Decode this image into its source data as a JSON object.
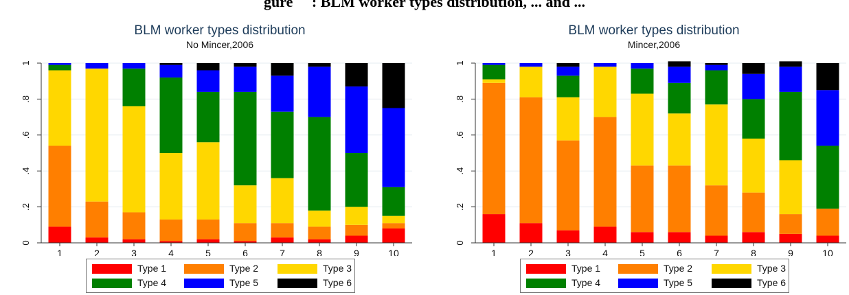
{
  "heading": {
    "text": "gure     : BLM worker types distribution, ... and ..."
  },
  "colors": {
    "type1": "#ff0000",
    "type2": "#ff7f00",
    "type3": "#ffd700",
    "type4": "#008000",
    "type5": "#0000ff",
    "type6": "#000000"
  },
  "legend": [
    "Type 1",
    "Type 2",
    "Type 3",
    "Type 4",
    "Type 5",
    "Type 6"
  ],
  "chart_data": [
    {
      "type": "bar",
      "stacked": true,
      "title": "BLM worker types distribution",
      "subtitle": "No Mincer,2006",
      "categories": [
        "1",
        "2",
        "3",
        "4",
        "5",
        "6",
        "7",
        "8",
        "9",
        "10"
      ],
      "ylim": [
        0,
        1
      ],
      "yticks": [
        "0",
        ".2",
        ".4",
        ".6",
        ".8",
        "1"
      ],
      "grid": true,
      "legend_position": "bottom",
      "series": [
        {
          "name": "Type 1",
          "values": [
            0.09,
            0.03,
            0.02,
            0.01,
            0.02,
            0.01,
            0.03,
            0.02,
            0.04,
            0.08
          ]
        },
        {
          "name": "Type 2",
          "values": [
            0.45,
            0.2,
            0.15,
            0.12,
            0.11,
            0.1,
            0.08,
            0.07,
            0.06,
            0.03
          ]
        },
        {
          "name": "Type 3",
          "values": [
            0.42,
            0.74,
            0.59,
            0.37,
            0.43,
            0.21,
            0.25,
            0.09,
            0.1,
            0.04
          ]
        },
        {
          "name": "Type 4",
          "values": [
            0.03,
            0.0,
            0.21,
            0.42,
            0.28,
            0.52,
            0.37,
            0.52,
            0.3,
            0.16
          ]
        },
        {
          "name": "Type 5",
          "values": [
            0.01,
            0.03,
            0.03,
            0.07,
            0.12,
            0.14,
            0.2,
            0.28,
            0.37,
            0.44
          ]
        },
        {
          "name": "Type 6",
          "values": [
            0.0,
            0.0,
            0.0,
            0.01,
            0.04,
            0.02,
            0.07,
            0.02,
            0.13,
            0.25
          ]
        }
      ]
    },
    {
      "type": "bar",
      "stacked": true,
      "title": "BLM worker types distribution",
      "subtitle": "Mincer,2006",
      "categories": [
        "1",
        "2",
        "3",
        "4",
        "5",
        "6",
        "7",
        "8",
        "9",
        "10"
      ],
      "ylim": [
        0,
        1
      ],
      "yticks": [
        "0",
        ".2",
        ".4",
        ".6",
        ".8",
        "1"
      ],
      "grid": true,
      "legend_position": "bottom",
      "series": [
        {
          "name": "Type 1",
          "values": [
            0.16,
            0.11,
            0.07,
            0.09,
            0.06,
            0.06,
            0.04,
            0.06,
            0.05,
            0.04
          ]
        },
        {
          "name": "Type 2",
          "values": [
            0.73,
            0.7,
            0.5,
            0.61,
            0.37,
            0.37,
            0.28,
            0.22,
            0.11,
            0.15
          ]
        },
        {
          "name": "Type 3",
          "values": [
            0.02,
            0.17,
            0.24,
            0.28,
            0.4,
            0.29,
            0.45,
            0.3,
            0.3,
            0.0
          ]
        },
        {
          "name": "Type 4",
          "values": [
            0.08,
            0.0,
            0.12,
            0.0,
            0.14,
            0.17,
            0.19,
            0.22,
            0.38,
            0.35
          ]
        },
        {
          "name": "Type 5",
          "values": [
            0.01,
            0.02,
            0.05,
            0.02,
            0.03,
            0.09,
            0.03,
            0.14,
            0.14,
            0.31
          ]
        },
        {
          "name": "Type 6",
          "values": [
            0.0,
            0.0,
            0.02,
            0.0,
            0.0,
            0.03,
            0.01,
            0.06,
            0.03,
            0.15
          ]
        }
      ]
    }
  ]
}
